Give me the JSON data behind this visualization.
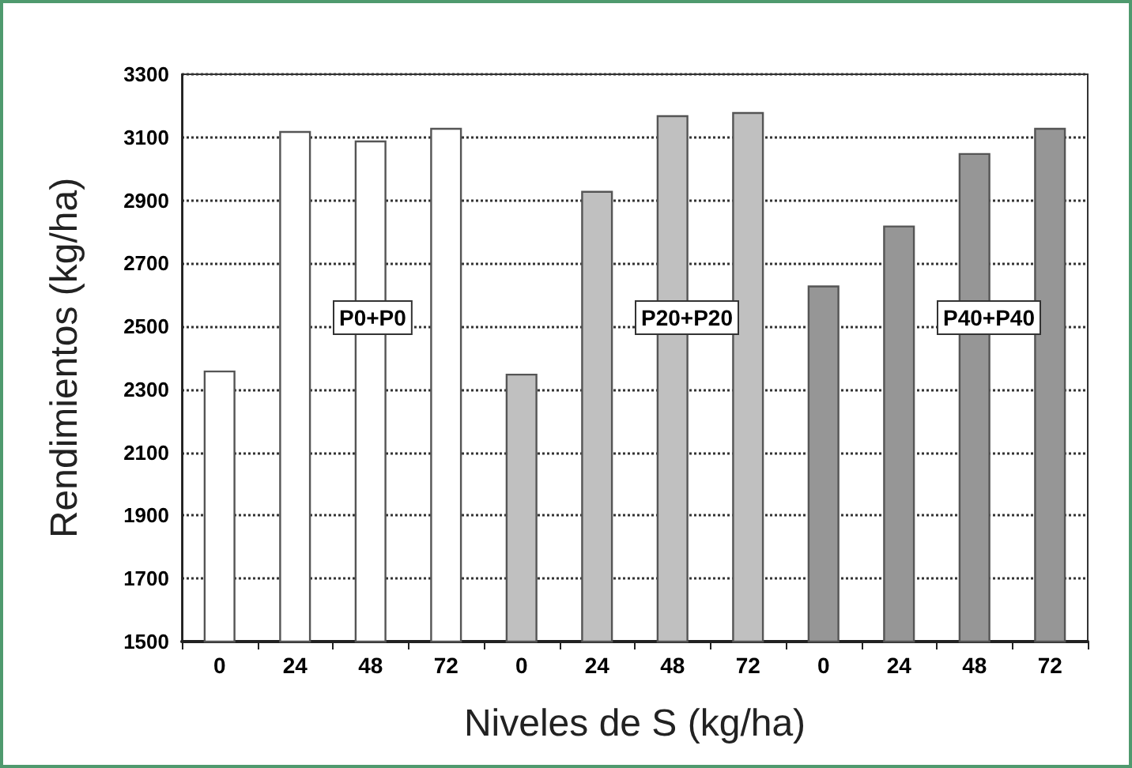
{
  "chart_data": {
    "type": "bar",
    "xlabel": "Niveles de S (kg/ha)",
    "ylabel": "Rendimientos (kg/ha)",
    "categories": [
      "0",
      "24",
      "48",
      "72",
      "0",
      "24",
      "48",
      "72",
      "0",
      "24",
      "48",
      "72"
    ],
    "values": [
      2360,
      3120,
      3090,
      3130,
      2350,
      2930,
      3170,
      3180,
      2630,
      2820,
      3050,
      3130
    ],
    "colors": [
      "#ffffff",
      "#ffffff",
      "#ffffff",
      "#ffffff",
      "#c0c0c0",
      "#c0c0c0",
      "#c0c0c0",
      "#c0c0c0",
      "#969696",
      "#969696",
      "#969696",
      "#969696"
    ],
    "ylim": [
      1500,
      3300
    ],
    "yticks": [
      1500,
      1700,
      1900,
      2100,
      2300,
      2500,
      2700,
      2900,
      3100,
      3300
    ],
    "grid": "y",
    "annotations": [
      "P0+P0",
      "P20+P20",
      "P40+P40"
    ]
  }
}
